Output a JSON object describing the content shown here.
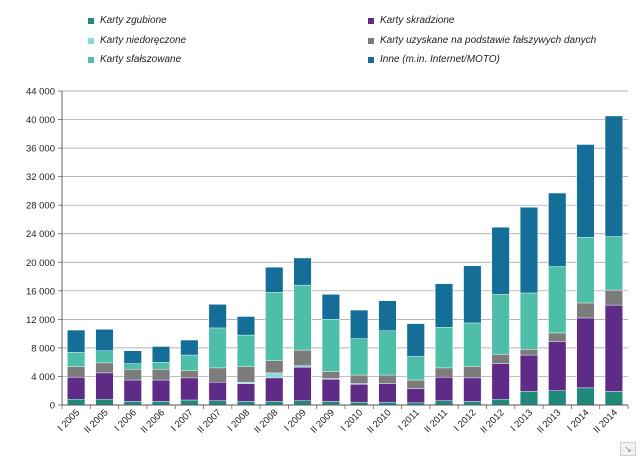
{
  "chart_data": {
    "type": "bar",
    "stacked": true,
    "categories": [
      "I 2005",
      "II 2005",
      "I 2006",
      "II 2006",
      "I 2007",
      "II 2007",
      "I 2008",
      "II 2008",
      "I 2009",
      "II 2009",
      "I 2010",
      "II 2010",
      "I 2011",
      "II 2011",
      "I 2012",
      "II 2012",
      "I 2013",
      "II 2013",
      "I 2014",
      "II 2014"
    ],
    "ylim": [
      0,
      44000
    ],
    "yticks": [
      0,
      4000,
      8000,
      12000,
      16000,
      20000,
      24000,
      28000,
      32000,
      36000,
      40000,
      44000
    ],
    "ytick_labels": [
      "0",
      "4 000",
      "8 000",
      "12 000",
      "16 000",
      "20 000",
      "24 000",
      "28 000",
      "32 000",
      "36 000",
      "40 000",
      "44 000"
    ],
    "grid": true,
    "legend_position": "top",
    "series": [
      {
        "name": "Karty zgubione",
        "color": "#1f8a7a",
        "values": [
          800,
          800,
          500,
          500,
          700,
          600,
          500,
          500,
          600,
          500,
          400,
          400,
          300,
          600,
          500,
          800,
          1900,
          2000,
          2400,
          1900
        ]
      },
      {
        "name": "Karty skradzione",
        "color": "#5e2c86",
        "values": [
          3100,
          3700,
          3000,
          3000,
          3100,
          2600,
          2500,
          3300,
          4700,
          3100,
          2500,
          2600,
          2000,
          3300,
          3300,
          5000,
          5100,
          6900,
          9800,
          12100
        ]
      },
      {
        "name": "Karty niedoręczone",
        "color": "#8dd6d9",
        "values": [
          0,
          0,
          0,
          0,
          0,
          0,
          200,
          700,
          200,
          100,
          100,
          0,
          0,
          0,
          0,
          0,
          0,
          0,
          0,
          0
        ]
      },
      {
        "name": "Karty uzyskane na podstawie fałszywych danych",
        "color": "#7c7c7c",
        "values": [
          1500,
          1400,
          1500,
          1500,
          1000,
          2000,
          2200,
          1700,
          2200,
          1000,
          1200,
          1200,
          1200,
          1300,
          1600,
          1300,
          800,
          1200,
          2100,
          2100
        ]
      },
      {
        "name": "Karty sfałszowane",
        "color": "#4dbfa8",
        "values": [
          2000,
          1700,
          800,
          1000,
          2200,
          5600,
          4400,
          9600,
          9100,
          7300,
          5100,
          6200,
          3300,
          5700,
          6100,
          8400,
          7900,
          9300,
          9200,
          7500
        ]
      },
      {
        "name": "Inne (m.in. Internet/MOTO)",
        "color": "#156e97",
        "values": [
          3100,
          3000,
          1800,
          2200,
          2100,
          3300,
          2600,
          3500,
          3800,
          3500,
          4000,
          4200,
          4600,
          6100,
          8000,
          9400,
          12000,
          10300,
          13000,
          16900
        ]
      }
    ]
  }
}
